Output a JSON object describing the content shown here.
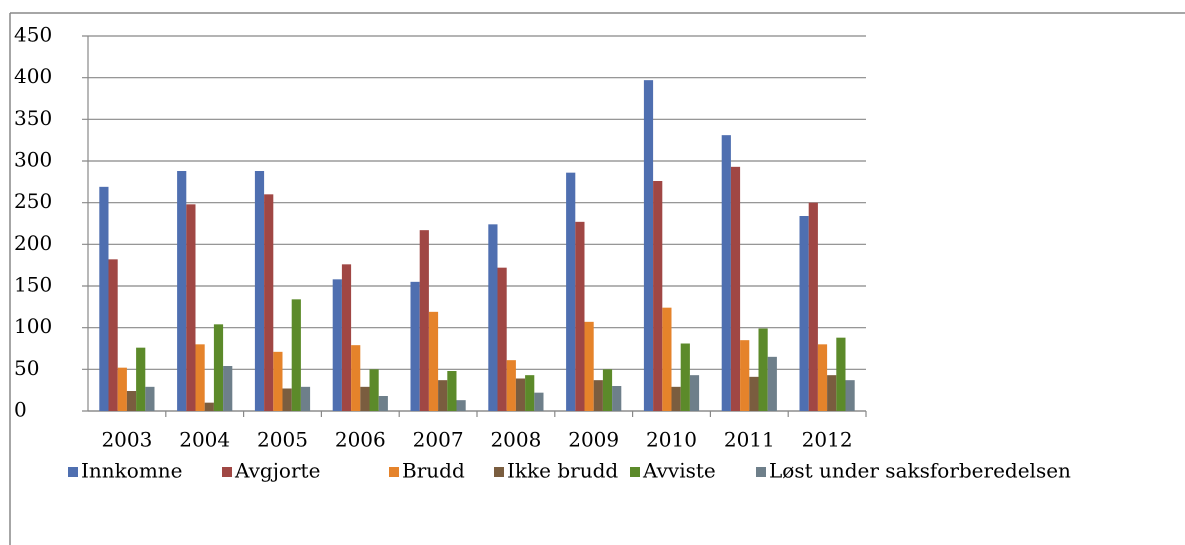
{
  "chart_data": {
    "type": "bar",
    "categories": [
      "2003",
      "2004",
      "2005",
      "2006",
      "2007",
      "2008",
      "2009",
      "2010",
      "2011",
      "2012"
    ],
    "series": [
      {
        "name": "Innkomne",
        "color": "#4f6fb0",
        "values": [
          269,
          288,
          288,
          158,
          155,
          224,
          286,
          397,
          331,
          234
        ]
      },
      {
        "name": "Avgjorte",
        "color": "#a04744",
        "values": [
          182,
          248,
          260,
          176,
          217,
          172,
          227,
          276,
          293,
          250
        ]
      },
      {
        "name": "Brudd",
        "color": "#e5832b",
        "values": [
          52,
          80,
          71,
          79,
          119,
          61,
          107,
          124,
          85,
          80
        ]
      },
      {
        "name": "Ikke brudd",
        "color": "#7a5d3f",
        "values": [
          24,
          10,
          27,
          29,
          37,
          39,
          37,
          29,
          41,
          43
        ]
      },
      {
        "name": "Avviste",
        "color": "#5c8a2a",
        "values": [
          76,
          104,
          134,
          50,
          48,
          43,
          50,
          81,
          99,
          88
        ]
      },
      {
        "name": "Løst under saksforberedelsen",
        "color": "#6e7f8a",
        "values": [
          29,
          54,
          29,
          18,
          13,
          22,
          30,
          43,
          65,
          37
        ]
      }
    ],
    "ylim": [
      0,
      450
    ],
    "yticks": [
      0,
      50,
      100,
      150,
      200,
      250,
      300,
      350,
      400,
      450
    ],
    "grid": true,
    "legend": "bottom"
  }
}
